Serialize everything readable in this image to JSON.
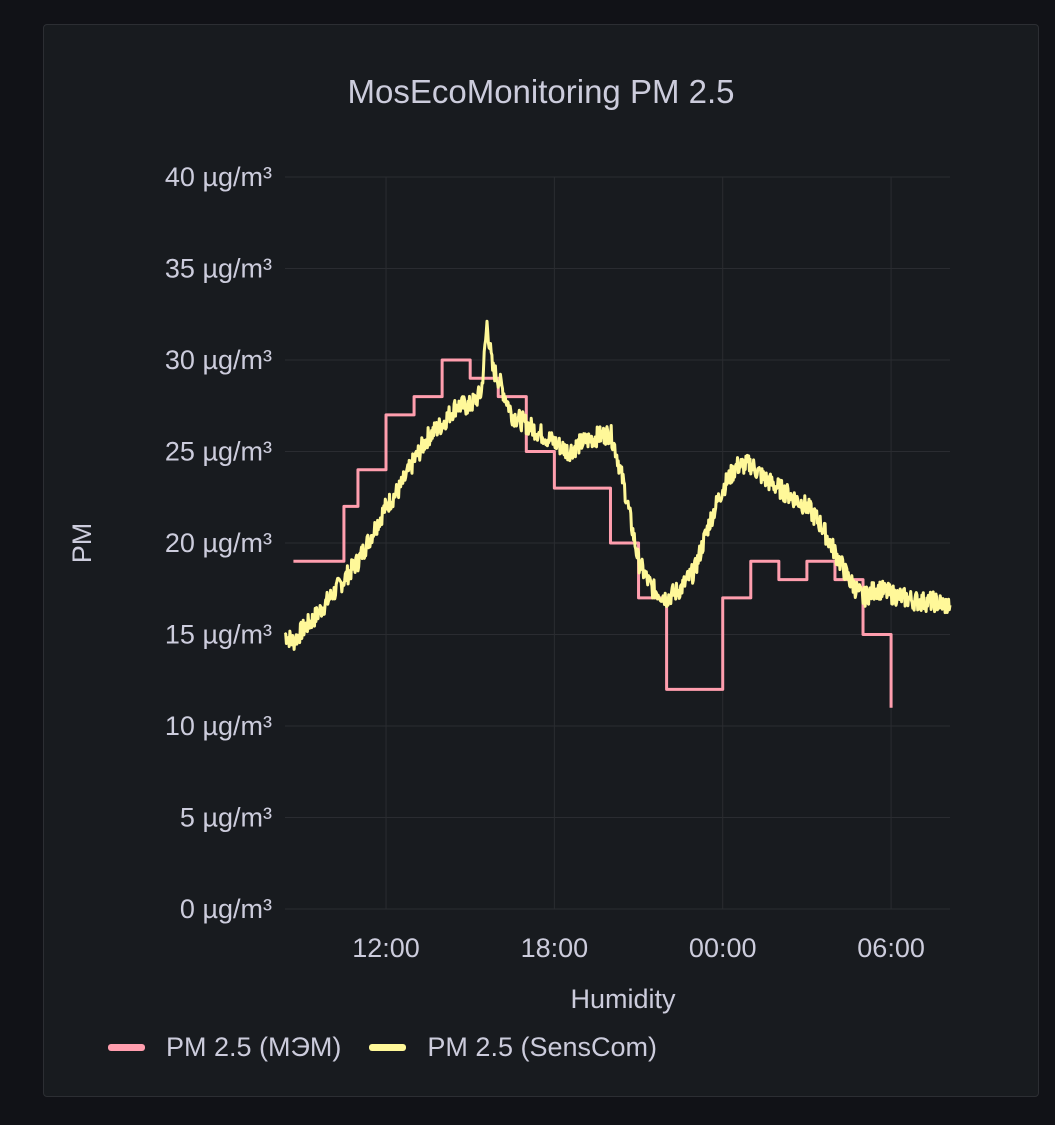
{
  "panel": {
    "title": "MosEcoMonitoring PM 2.5"
  },
  "chart_data": {
    "type": "line",
    "title": "MosEcoMonitoring PM 2.5",
    "xlabel": "Humidity",
    "ylabel": "PM",
    "x_unit": "hours since 00:00 of day 1",
    "xlim": [
      8.4,
      32.1
    ],
    "ylim": [
      0,
      40
    ],
    "y_ticks": [
      0,
      5,
      10,
      15,
      20,
      25,
      30,
      35,
      40
    ],
    "y_tick_labels": [
      "0 µg/m³",
      "5 µg/m³",
      "10 µg/m³",
      "15 µg/m³",
      "20 µg/m³",
      "25 µg/m³",
      "30 µg/m³",
      "35 µg/m³",
      "40 µg/m³"
    ],
    "x_ticks": [
      12,
      18,
      24,
      30
    ],
    "x_tick_labels": [
      "12:00",
      "18:00",
      "00:00",
      "06:00"
    ],
    "grid": true,
    "legend_position": "bottom-left",
    "series": [
      {
        "name": "PM 2.5 (МЭМ)",
        "color": "#ff9eae",
        "step": true,
        "x": [
          8.7,
          10.0,
          10.5,
          11.0,
          12.0,
          13.0,
          14.0,
          15.0,
          16.0,
          17.0,
          18.0,
          19.0,
          20.0,
          21.0,
          22.0,
          23.0,
          24.0,
          25.0,
          26.0,
          27.0,
          28.0,
          29.0,
          30.0
        ],
        "values": [
          19,
          19,
          22,
          24,
          27,
          28,
          30,
          29,
          28,
          25,
          23,
          23,
          20,
          17,
          12,
          12,
          17,
          19,
          18,
          19,
          18,
          15,
          11
        ]
      },
      {
        "name": "PM 2.5 (SensCom)",
        "color": "#fff899",
        "step": false,
        "x": [
          8.4,
          8.7,
          9.0,
          9.5,
          10.0,
          10.5,
          11.0,
          11.5,
          12.0,
          12.5,
          13.0,
          13.5,
          14.0,
          14.5,
          15.0,
          15.4,
          15.6,
          15.8,
          16.0,
          16.5,
          17.0,
          17.5,
          18.0,
          18.5,
          19.0,
          19.5,
          20.0,
          20.2,
          20.5,
          21.0,
          21.3,
          21.5,
          22.0,
          22.5,
          23.0,
          23.5,
          24.0,
          24.5,
          25.0,
          25.5,
          26.0,
          26.5,
          27.0,
          27.5,
          28.0,
          28.5,
          29.0,
          29.5,
          30.0,
          30.5,
          31.0,
          31.5,
          32.0,
          32.1
        ],
        "values": [
          15.0,
          14.6,
          15.2,
          16.0,
          17.0,
          18.0,
          19.0,
          20.5,
          22.0,
          23.0,
          24.5,
          25.8,
          26.5,
          27.5,
          27.5,
          28.2,
          32.0,
          29.5,
          29.0,
          27.0,
          26.5,
          26.0,
          25.5,
          25.0,
          25.5,
          25.8,
          26.0,
          25.0,
          23.0,
          19.0,
          18.0,
          17.5,
          17.0,
          17.5,
          18.5,
          21.0,
          23.0,
          24.2,
          24.3,
          23.5,
          23.0,
          22.5,
          22.0,
          21.0,
          19.5,
          18.0,
          17.0,
          17.5,
          17.2,
          17.0,
          16.8,
          16.8,
          16.6,
          16.6
        ]
      }
    ]
  }
}
